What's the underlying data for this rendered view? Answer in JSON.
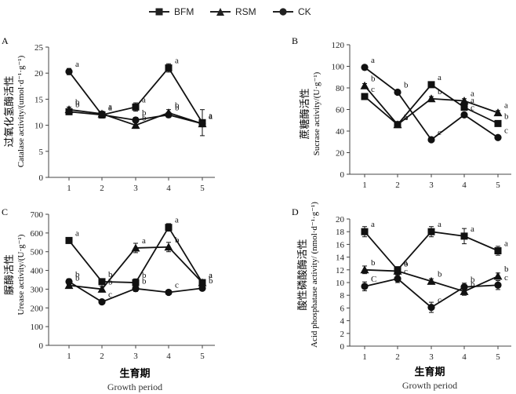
{
  "legend": [
    {
      "name": "BFM",
      "marker": "square"
    },
    {
      "name": "RSM",
      "marker": "triangle"
    },
    {
      "name": "CK",
      "marker": "circle"
    }
  ],
  "chart_data": [
    {
      "panel": "A",
      "type": "line",
      "ylabel_cn": "过氧化氢酶活性",
      "ylabel_en": "Catalase activity/(umol·d⁻¹·g⁻¹)",
      "x": [
        1,
        2,
        3,
        4,
        5
      ],
      "ylim": [
        0,
        25
      ],
      "yticks": [
        0,
        5,
        10,
        15,
        20,
        25
      ],
      "series": [
        {
          "name": "BFM",
          "values": [
            12.6,
            12.0,
            13.5,
            21.0,
            10.5
          ],
          "err": [
            0.5,
            0.6,
            0.8,
            0.8,
            2.5
          ],
          "letters": [
            "b",
            "a",
            "a",
            "a",
            "a"
          ]
        },
        {
          "name": "RSM",
          "values": [
            13.0,
            12.2,
            10.0,
            12.4,
            10.3
          ],
          "err": [
            0.5,
            0.5,
            0.6,
            0.6,
            0.6
          ],
          "letters": [
            "b",
            "a",
            "b",
            "b",
            "a"
          ]
        },
        {
          "name": "CK",
          "values": [
            20.3,
            12.0,
            11.0,
            12.0,
            10.3
          ],
          "err": [
            0.6,
            0.6,
            0.5,
            0.5,
            0.5
          ],
          "letters": [
            "a",
            "a",
            "b",
            "b",
            "a"
          ]
        }
      ]
    },
    {
      "panel": "B",
      "type": "line",
      "ylabel_cn": "蔗糖酶活性",
      "ylabel_en": "Sucrase activity/(U·g⁻¹)",
      "x": [
        1,
        2,
        3,
        4,
        5
      ],
      "ylim": [
        0,
        120
      ],
      "yticks": [
        0,
        20,
        40,
        60,
        80,
        100,
        120
      ],
      "series": [
        {
          "name": "BFM",
          "values": [
            72,
            46,
            83,
            62,
            47
          ],
          "err": [
            2,
            2,
            2,
            2,
            2
          ],
          "letters": [
            "c",
            "a",
            "a",
            "a",
            "b"
          ]
        },
        {
          "name": "RSM",
          "values": [
            82,
            46,
            70,
            68,
            57
          ],
          "err": [
            2,
            2,
            2,
            2,
            2
          ],
          "letters": [
            "b",
            "b",
            "b",
            "a",
            "a"
          ]
        },
        {
          "name": "CK",
          "values": [
            99,
            76,
            32,
            55,
            34
          ],
          "err": [
            2,
            2,
            2,
            2,
            2
          ],
          "letters": [
            "a",
            "b",
            "c",
            "c",
            "c"
          ]
        }
      ]
    },
    {
      "panel": "C",
      "type": "line",
      "ylabel_cn": "脲酶活性",
      "ylabel_en": "Urease activity/(U·g⁻¹)",
      "x": [
        1,
        2,
        3,
        4,
        5
      ],
      "ylim": [
        0,
        700
      ],
      "yticks": [
        0,
        100,
        200,
        300,
        400,
        500,
        600,
        700
      ],
      "series": [
        {
          "name": "BFM",
          "values": [
            560,
            340,
            335,
            630,
            335
          ],
          "err": [
            15,
            15,
            20,
            20,
            15
          ],
          "letters": [
            "a",
            "b",
            "b",
            "a",
            "a"
          ]
        },
        {
          "name": "RSM",
          "values": [
            320,
            300,
            520,
            525,
            335
          ],
          "err": [
            15,
            15,
            25,
            25,
            15
          ],
          "letters": [
            "b",
            "b",
            "a",
            "b",
            "a"
          ]
        },
        {
          "name": "CK",
          "values": [
            340,
            232,
            303,
            283,
            305
          ],
          "err": [
            15,
            12,
            15,
            12,
            12
          ],
          "letters": [
            "b",
            "c",
            "b",
            "c",
            "b"
          ]
        }
      ]
    },
    {
      "panel": "D",
      "type": "line",
      "ylabel_cn": "酸性磷酸酶活性",
      "ylabel_en": "Acid phosphatase activity/ (nmol·d⁻¹·g⁻¹)",
      "x": [
        1,
        2,
        3,
        4,
        5
      ],
      "ylim": [
        0,
        20
      ],
      "yticks": [
        0,
        2,
        4,
        6,
        8,
        10,
        12,
        14,
        16,
        18,
        20
      ],
      "series": [
        {
          "name": "BFM",
          "values": [
            18.0,
            12.0,
            18.0,
            17.3,
            15.0
          ],
          "err": [
            0.8,
            0.5,
            0.8,
            1.2,
            0.7
          ],
          "letters": [
            "a",
            "a",
            "a",
            "a",
            "a"
          ]
        },
        {
          "name": "RSM",
          "values": [
            12.0,
            11.8,
            10.2,
            8.6,
            11.0
          ],
          "err": [
            0.6,
            0.5,
            0.4,
            0.6,
            0.5
          ],
          "letters": [
            "b",
            "b",
            "b",
            "b",
            "b"
          ]
        },
        {
          "name": "CK",
          "values": [
            9.4,
            10.6,
            6.1,
            9.3,
            9.6
          ],
          "err": [
            0.7,
            0.6,
            0.8,
            0.6,
            0.7
          ],
          "letters": [
            "C",
            "c",
            "c",
            "b",
            "c"
          ]
        }
      ]
    }
  ],
  "x_ticks": [
    "1",
    "2",
    "3",
    "4",
    "5"
  ],
  "xlabel_cn": "生育期",
  "xlabel_en": "Growth period"
}
